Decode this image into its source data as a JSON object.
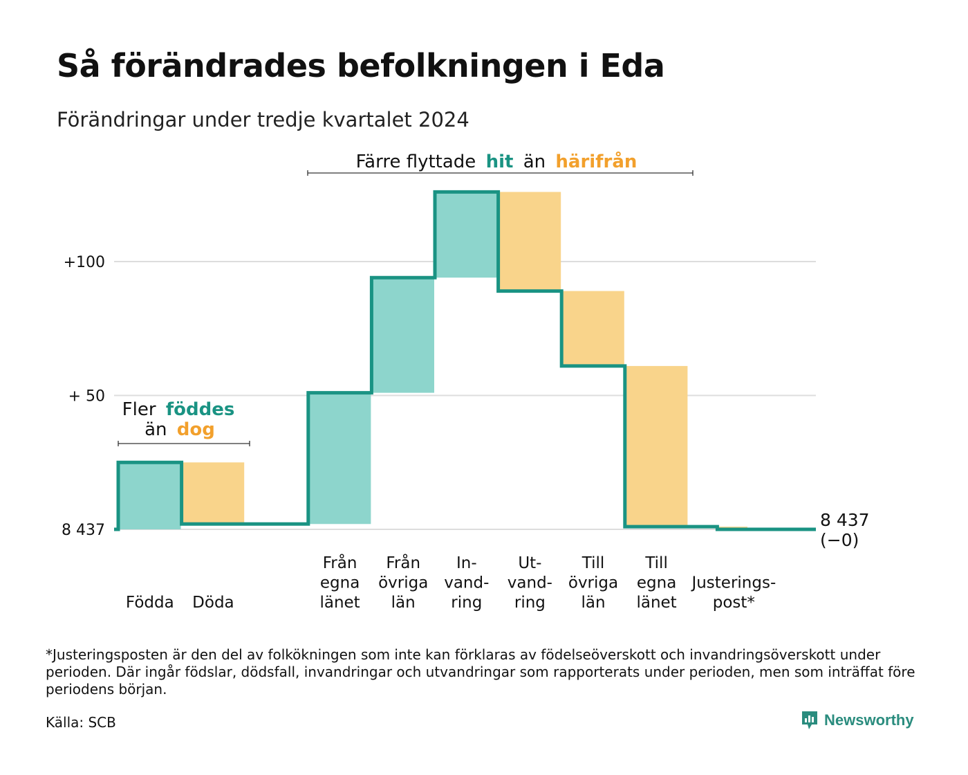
{
  "header": {
    "title": "Så förändrades befolkningen i Eda",
    "subtitle": "Förändringar under tredje kvartalet 2024"
  },
  "annotations": {
    "births": {
      "prefix": "Fler",
      "green": "föddes",
      "mid": "än",
      "orange": "dog"
    },
    "moves": {
      "prefix": "Färre flyttade",
      "green": "hit",
      "mid": "än",
      "orange": "härifrån"
    }
  },
  "chart_data": {
    "type": "waterfall",
    "base_label": "8 437",
    "y_ticks": [
      {
        "value": 0,
        "label": "8 437"
      },
      {
        "value": 50,
        "label": "+ 50"
      },
      {
        "value": 100,
        "label": "+100"
      }
    ],
    "ylim": [
      0,
      130
    ],
    "steps": [
      {
        "id": "fodda",
        "label": [
          "Födda"
        ],
        "delta": 25,
        "kind": "in"
      },
      {
        "id": "doda",
        "label": [
          "Döda"
        ],
        "delta": -23,
        "kind": "out"
      },
      {
        "id": "gap",
        "label": [],
        "delta": 0,
        "kind": "gap"
      },
      {
        "id": "fran-egna",
        "label": [
          "Från",
          "egna",
          "länet"
        ],
        "delta": 49,
        "kind": "in"
      },
      {
        "id": "fran-ovriga",
        "label": [
          "Från",
          "övriga",
          "län"
        ],
        "delta": 43,
        "kind": "in"
      },
      {
        "id": "invandring",
        "label": [
          "In-",
          "vand-",
          "ring"
        ],
        "delta": 32,
        "kind": "in"
      },
      {
        "id": "utvandring",
        "label": [
          "Ut-",
          "vand-",
          "ring"
        ],
        "delta": -37,
        "kind": "out"
      },
      {
        "id": "till-ovriga",
        "label": [
          "Till",
          "övriga",
          "län"
        ],
        "delta": -28,
        "kind": "out"
      },
      {
        "id": "till-egna",
        "label": [
          "Till",
          "egna",
          "länet"
        ],
        "delta": -60,
        "kind": "out"
      },
      {
        "id": "justering",
        "label": [
          "Justerings-",
          "post*"
        ],
        "delta": -1,
        "kind": "adjust"
      }
    ],
    "end_label": "8 437",
    "end_change": "(−0)",
    "colors": {
      "in_fill": "#8dd5cc",
      "out_fill": "#f9d48b",
      "line": "#1a9383",
      "green_text": "#1a9383",
      "orange_text": "#f2a02c",
      "grid": "#dddddd"
    }
  },
  "footer": {
    "footnote": "*Justeringsposten är den del av folkökningen som inte kan förklaras av födelseöverskott och invandringsöverskott under perioden. Där ingår födslar, dödsfall, invandringar och utvandringar som rapporterats under perioden, men som inträffat före periodens början.",
    "source": "Källa: SCB",
    "brand": "Newsworthy"
  }
}
